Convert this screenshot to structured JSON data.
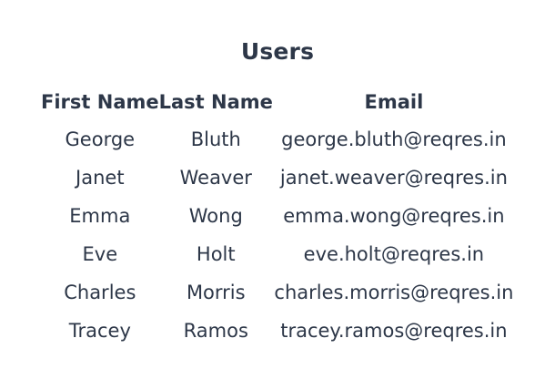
{
  "page": {
    "title": "Users"
  },
  "table": {
    "headers": {
      "first_name": "First Name",
      "last_name": "Last Name",
      "email": "Email"
    },
    "rows": [
      {
        "first_name": "George",
        "last_name": "Bluth",
        "email": "george.bluth@reqres.in"
      },
      {
        "first_name": "Janet",
        "last_name": "Weaver",
        "email": "janet.weaver@reqres.in"
      },
      {
        "first_name": "Emma",
        "last_name": "Wong",
        "email": "emma.wong@reqres.in"
      },
      {
        "first_name": "Eve",
        "last_name": "Holt",
        "email": "eve.holt@reqres.in"
      },
      {
        "first_name": "Charles",
        "last_name": "Morris",
        "email": "charles.morris@reqres.in"
      },
      {
        "first_name": "Tracey",
        "last_name": "Ramos",
        "email": "tracey.ramos@reqres.in"
      }
    ]
  }
}
